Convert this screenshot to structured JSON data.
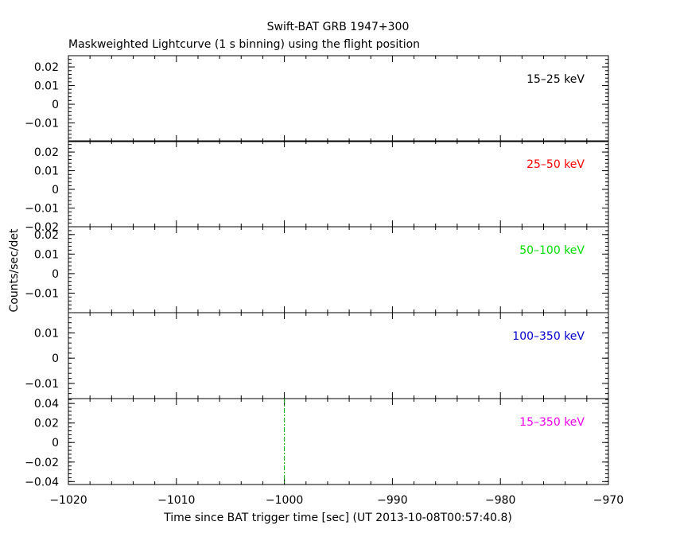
{
  "chart_data": {
    "type": "line",
    "title": "Swift-BAT GRB 1947+300",
    "subtitle": "Maskweighted Lightcurve (1 s binning) using the flight position",
    "xlabel": "Time since BAT trigger time [sec] (UT 2013-10-08T00:57:40.8)",
    "ylabel": "Counts/sec/det",
    "xlim": [
      -1020,
      -970
    ],
    "xticks": [
      -1020,
      -1010,
      -1000,
      -990,
      -980,
      -970
    ],
    "xtick_labels": [
      "−1020",
      "−1010",
      "−1000",
      "−990",
      "−980",
      "−970"
    ],
    "trigger_marker_x": -1000,
    "trigger_marker_color": "#00aa00",
    "panels": [
      {
        "name": "15–25 keV",
        "color": "#000000",
        "ylim": [
          -0.02,
          0.026
        ],
        "yticks": [
          0.02,
          0.01,
          0,
          -0.01
        ],
        "ytick_labels": [
          "0.02",
          "0.01",
          "0",
          "−0.01"
        ],
        "values": []
      },
      {
        "name": "25–50 keV",
        "color": "#ff0000",
        "ylim": [
          -0.02,
          0.026
        ],
        "yticks": [
          0.02,
          0.01,
          0,
          -0.01,
          -0.02
        ],
        "ytick_labels": [
          "0.02",
          "0.01",
          "0",
          "−0.01",
          "−0.02"
        ],
        "values": []
      },
      {
        "name": "50–100 keV",
        "color": "#00dd00",
        "ylim": [
          -0.02,
          0.024
        ],
        "yticks": [
          0.02,
          0.01,
          0,
          -0.01
        ],
        "ytick_labels": [
          "0.02",
          "0.01",
          "0",
          "−0.01"
        ],
        "values": []
      },
      {
        "name": "100–350 keV",
        "color": "#0000cc",
        "ylim": [
          -0.016,
          0.018
        ],
        "yticks": [
          0.01,
          0,
          -0.01
        ],
        "ytick_labels": [
          "0.01",
          "0",
          "−0.01"
        ],
        "values": []
      },
      {
        "name": "15–350 keV",
        "color": "#ee00ee",
        "ylim": [
          -0.043,
          0.045
        ],
        "yticks": [
          0.04,
          0.02,
          0,
          -0.02,
          -0.04
        ],
        "ytick_labels": [
          "0.04",
          "0.02",
          "0",
          "−0.02",
          "−0.04"
        ],
        "values": [],
        "show_trigger_marker": true
      }
    ]
  }
}
